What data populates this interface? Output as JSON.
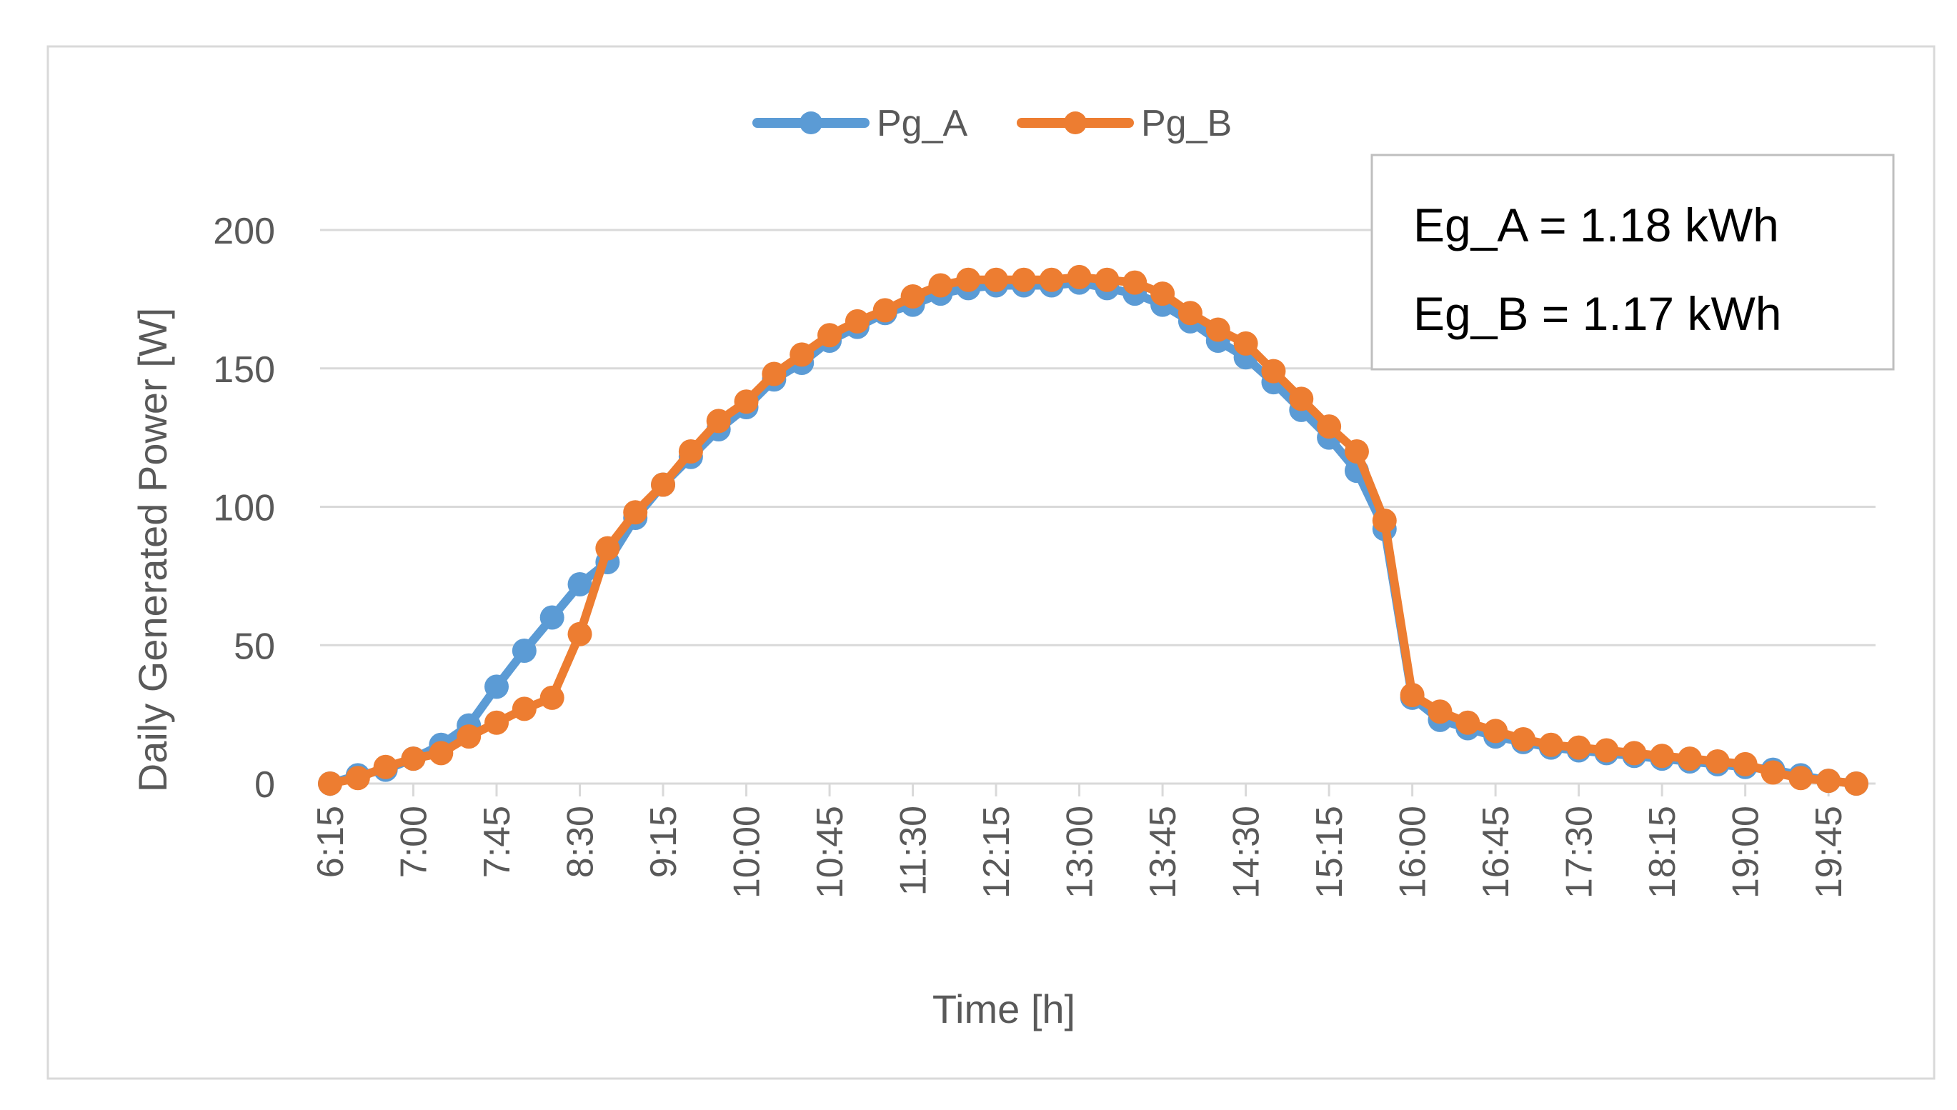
{
  "chart_data": {
    "type": "line",
    "title": "",
    "xlabel": "Time [h]",
    "ylabel": "Daily Generated Power [W]",
    "ylim": [
      0,
      200
    ],
    "yticks": [
      0,
      50,
      100,
      150,
      200
    ],
    "grid": "horizontal",
    "legend_position": "top-center",
    "xtick_labels": [
      "6:15",
      "7:00",
      "7:45",
      "8:30",
      "9:15",
      "10:00",
      "10:45",
      "11:30",
      "12:15",
      "13:00",
      "13:45",
      "14:30",
      "15:15",
      "16:00",
      "16:45",
      "17:30",
      "18:15",
      "19:00",
      "19:45"
    ],
    "x": [
      "6:15",
      "6:30",
      "6:45",
      "7:00",
      "7:15",
      "7:30",
      "7:45",
      "8:00",
      "8:15",
      "8:30",
      "8:45",
      "9:00",
      "9:15",
      "9:30",
      "9:45",
      "10:00",
      "10:15",
      "10:30",
      "10:45",
      "11:00",
      "11:15",
      "11:30",
      "11:45",
      "12:00",
      "12:15",
      "12:30",
      "12:45",
      "13:00",
      "13:15",
      "13:30",
      "13:45",
      "14:00",
      "14:15",
      "14:30",
      "14:45",
      "15:00",
      "15:15",
      "15:30",
      "15:45",
      "16:00",
      "16:15",
      "16:30",
      "16:45",
      "17:00",
      "17:15",
      "17:30",
      "17:45",
      "18:00",
      "18:15",
      "18:30",
      "18:45",
      "19:00",
      "19:15",
      "19:30",
      "19:45",
      "20:00"
    ],
    "series": [
      {
        "name": "Pg_A",
        "color": "#5B9BD5",
        "values": [
          0,
          3,
          5,
          9,
          14,
          21,
          35,
          48,
          60,
          72,
          80,
          96,
          108,
          118,
          128,
          136,
          146,
          152,
          160,
          165,
          170,
          173,
          177,
          179,
          180,
          180,
          180,
          181,
          179,
          177,
          173,
          167,
          160,
          154,
          145,
          135,
          125,
          113,
          92,
          31,
          23,
          20,
          17,
          15,
          13,
          12,
          11,
          10,
          9,
          8,
          7,
          6,
          5,
          3,
          1,
          0
        ]
      },
      {
        "name": "Pg_B",
        "color": "#ED7D31",
        "values": [
          0,
          2,
          6,
          9,
          11,
          17,
          22,
          27,
          31,
          54,
          85,
          98,
          108,
          120,
          131,
          138,
          148,
          155,
          162,
          167,
          171,
          176,
          180,
          182,
          182,
          182,
          182,
          183,
          182,
          181,
          177,
          170,
          164,
          159,
          149,
          139,
          129,
          120,
          95,
          32,
          26,
          22,
          19,
          16,
          14,
          13,
          12,
          11,
          10,
          9,
          8,
          7,
          4,
          2,
          1,
          0
        ]
      }
    ],
    "annotations": [
      "Eg_A = 1.18 kWh",
      "Eg_B = 1.17 kWh"
    ]
  }
}
